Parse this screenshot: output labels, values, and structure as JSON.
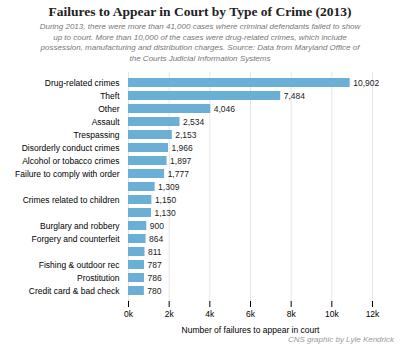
{
  "chart_data": {
    "type": "bar",
    "orientation": "horizontal",
    "title": "Failures to Appear in Court by Type of Crime (2013)",
    "subtitle": "During 2013, there were more than 41,000 cases where criminal defendants failed to show\nup to court. More than 10,000 of the cases were drug-related crimes, which include\npossession, manufacturing and distribution charges. Source: Data from Maryland Office of\nthe Courts Judicial Information Systems",
    "xlabel": "Number of failures to appear in court",
    "footer": "CNS graphic by Lyle Kendrick",
    "categories": [
      "Drug-related crimes",
      "Theft",
      "Other",
      "Assault",
      "Trespassing",
      "Disorderly conduct crimes",
      "Alcohol or tobacco crimes",
      "Failure to comply with order",
      null,
      "Crimes related to children",
      null,
      "Burglary and robbery",
      "Forgery and counterfeit",
      null,
      "Fishing & outdoor rec",
      "Prostitution",
      "Credit card & bad check"
    ],
    "values": [
      10902,
      7484,
      4046,
      2534,
      2153,
      1966,
      1897,
      1777,
      1309,
      1150,
      1130,
      900,
      864,
      811,
      787,
      786,
      780
    ],
    "value_labels": [
      "10,902",
      "7,484",
      "4,046",
      "2,534",
      "2,153",
      "1,966",
      "1,897",
      "1,777",
      "1,309",
      "1,150",
      "1,130",
      "900",
      "864",
      "811",
      "787",
      "786",
      "780"
    ],
    "data_labels": true,
    "color": "#6baed6",
    "xlim": [
      0,
      12000
    ],
    "xticks": [
      {
        "value": 0,
        "label": "0k"
      },
      {
        "value": 2000,
        "label": "2k"
      },
      {
        "value": 4000,
        "label": "4k"
      },
      {
        "value": 6000,
        "label": "6k"
      },
      {
        "value": 8000,
        "label": "8k"
      },
      {
        "value": 10000,
        "label": "10k"
      },
      {
        "value": 12000,
        "label": "12k"
      }
    ],
    "grid": true
  }
}
